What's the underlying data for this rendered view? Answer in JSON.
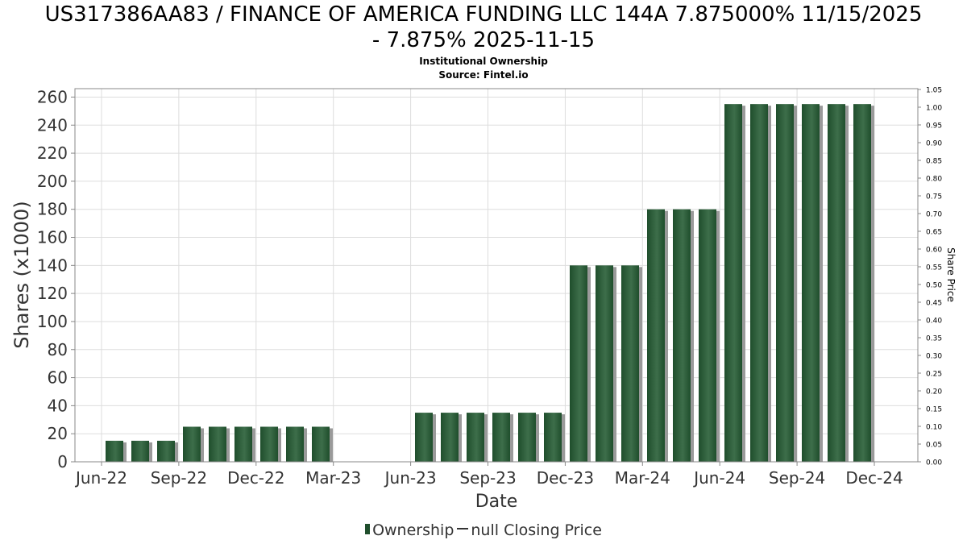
{
  "title_line1": "US317386AA83 / FINANCE OF AMERICA FUNDING LLC 144A 7.875000% 11/15/2025",
  "title_line2": "- 7.875% 2025-11-15",
  "subtitle": "Institutional Ownership",
  "source": "Source: Fintel.io",
  "legend": {
    "ownership": "Ownership",
    "price": "null Closing Price"
  },
  "colors": {
    "bar": "#1f4e2c",
    "bar_highlight": "#3d6e4a",
    "shadow": "#9a9a9a",
    "grid": "#dddddd",
    "axis": "#888888"
  },
  "chart_data": {
    "type": "bar",
    "xlabel": "Date",
    "ylabel": "Shares (x1000)",
    "y2label": "Share Price",
    "ylim": [
      0,
      266
    ],
    "y2lim": [
      0,
      1.05
    ],
    "xticks": [
      "Jun-22",
      "Sep-22",
      "Dec-22",
      "Mar-23",
      "Jun-23",
      "Sep-23",
      "Dec-23",
      "Mar-24",
      "Jun-24",
      "Sep-24",
      "Dec-24"
    ],
    "yticks": [
      0,
      20,
      40,
      60,
      80,
      100,
      120,
      140,
      160,
      180,
      200,
      220,
      240,
      260
    ],
    "y2ticks": [
      "0.00",
      "0.05",
      "0.10",
      "0.15",
      "0.20",
      "0.25",
      "0.30",
      "0.35",
      "0.40",
      "0.45",
      "0.50",
      "0.55",
      "0.60",
      "0.65",
      "0.70",
      "0.75",
      "0.80",
      "0.85",
      "0.90",
      "0.95",
      "1.00",
      "1.05"
    ],
    "grid": true,
    "legend_position": "bottom",
    "series": [
      {
        "name": "Ownership",
        "values": [
          null,
          15,
          15,
          15,
          25,
          25,
          25,
          25,
          25,
          25,
          null,
          null,
          null,
          35,
          35,
          35,
          35,
          35,
          35,
          140,
          140,
          140,
          180,
          180,
          180,
          255,
          255,
          255,
          255,
          255,
          255,
          null
        ]
      }
    ]
  }
}
